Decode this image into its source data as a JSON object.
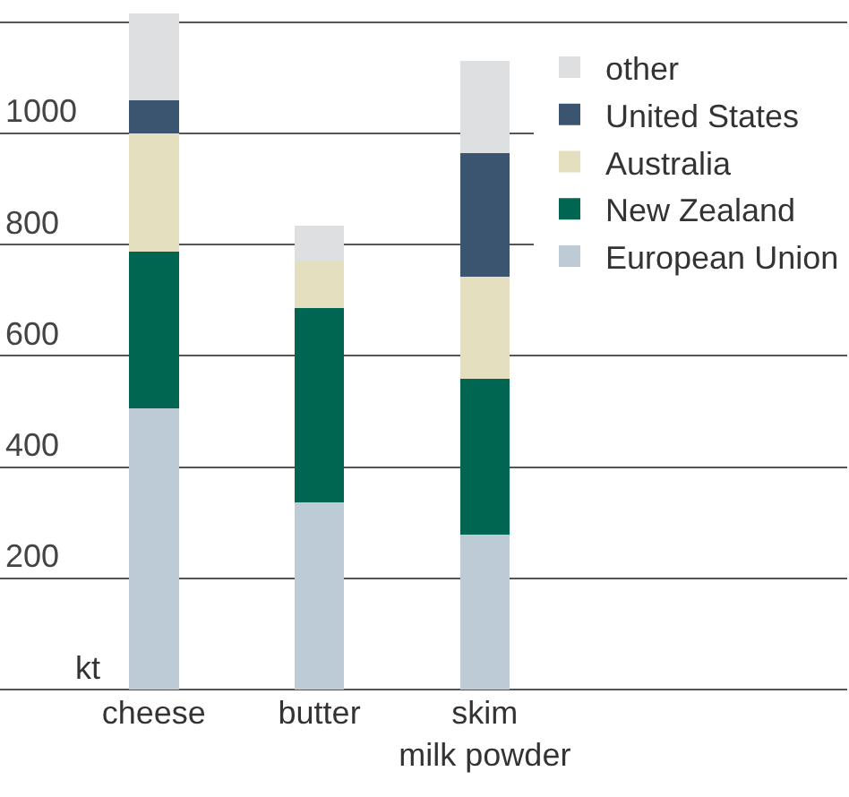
{
  "chart_data": {
    "type": "bar",
    "stacked": true,
    "ylabel": "kt",
    "categories": [
      "cheese",
      "butter",
      "skim\nmilk powder"
    ],
    "series": [
      {
        "name": "European Union",
        "color": "#bccbd6",
        "values": [
          505,
          336,
          279
        ]
      },
      {
        "name": "New Zealand",
        "color": "#006652",
        "values": [
          282,
          350,
          280
        ]
      },
      {
        "name": "Australia",
        "color": "#e3dfbf",
        "values": [
          213,
          85,
          184
        ]
      },
      {
        "name": "United States",
        "color": "#3b5570",
        "values": [
          60,
          null,
          222
        ]
      },
      {
        "name": "other",
        "color": "#dedfe1",
        "values": [
          156,
          64,
          165
        ]
      }
    ],
    "ylim": [
      0,
      1240
    ],
    "yticks": [
      {
        "value": 0,
        "label": null
      },
      200,
      400,
      600,
      800,
      1000,
      {
        "value": 1200,
        "label": null
      }
    ],
    "grid": "y",
    "legend": "top right"
  }
}
